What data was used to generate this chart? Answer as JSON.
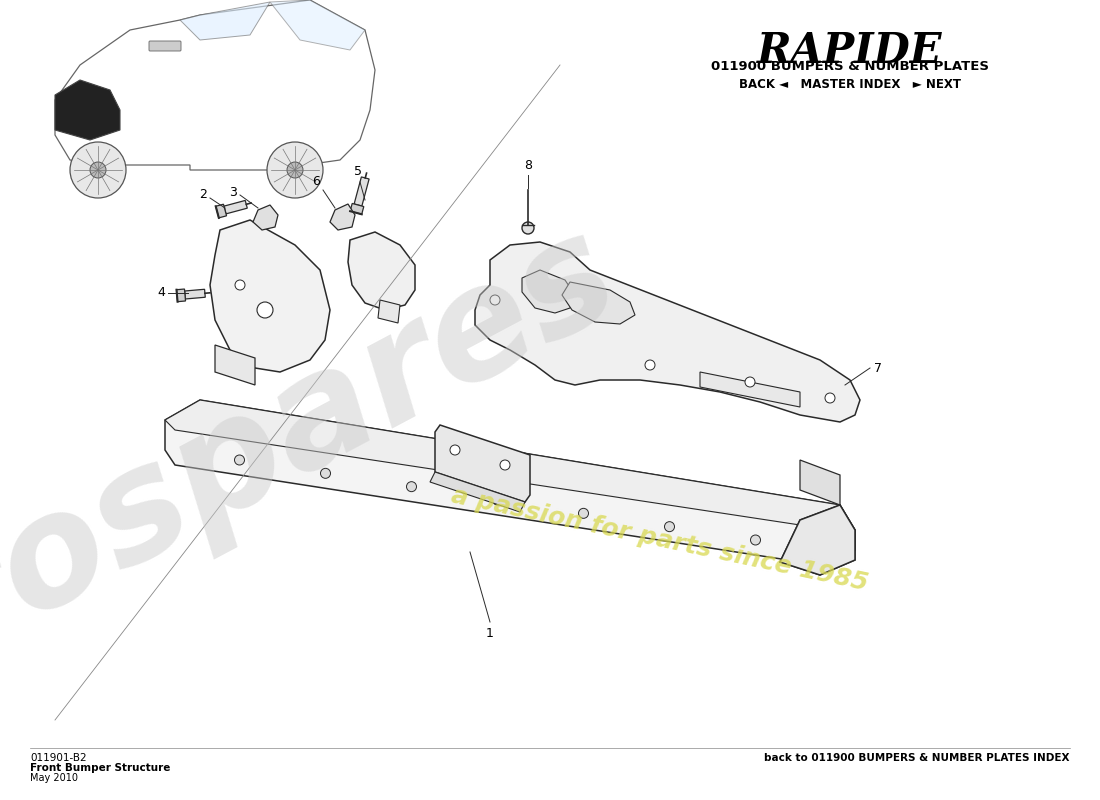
{
  "title": "RAPIDE",
  "subtitle": "011900 BUMPERS & NUMBER PLATES",
  "nav_text": "BACK ◄   MASTER INDEX   ► NEXT",
  "part_code": "011901-B2",
  "part_name": "Front Bumper Structure",
  "date": "May 2010",
  "back_link": "back to 011900 BUMPERS & NUMBER PLATES INDEX",
  "bg_color": "#ffffff",
  "line_color": "#2a2a2a",
  "fig_width": 11.0,
  "fig_height": 8.0
}
